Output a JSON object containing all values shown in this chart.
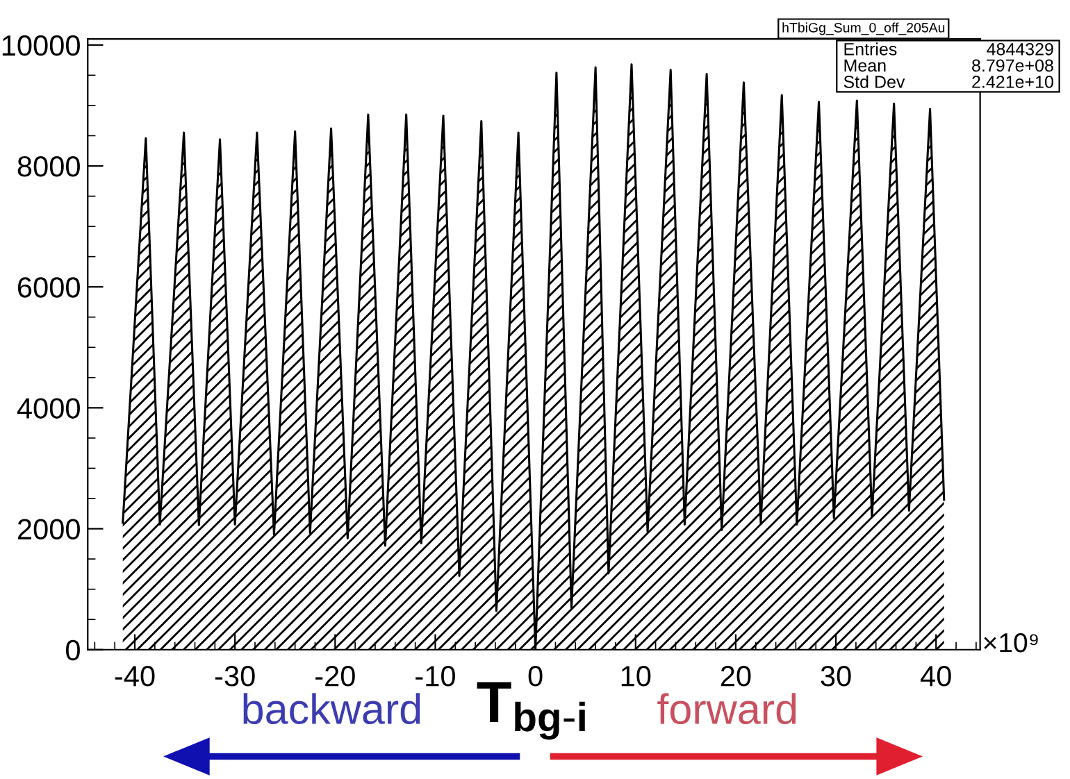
{
  "chart_data": {
    "type": "area",
    "x": [
      -41.2,
      -38.9,
      -37.5,
      -35.1,
      -33.6,
      -31.5,
      -30,
      -27.8,
      -26.1,
      -24,
      -22.5,
      -20.4,
      -18.75,
      -16.7,
      -15,
      -12.9,
      -11.4,
      -9.2,
      -7.6,
      -5.4,
      -3.9,
      -1.7,
      0,
      2.1,
      3.6,
      6,
      7.3,
      9.6,
      11.2,
      13.5,
      14.9,
      17.1,
      18.6,
      20.8,
      22.5,
      24.6,
      26.1,
      28.3,
      29.8,
      32.1,
      33.6,
      35.8,
      37.3,
      39.4,
      40.8
    ],
    "series": [
      {
        "color": "#000000",
        "values": [
          2100,
          8460,
          2070,
          8550,
          2060,
          8440,
          2070,
          8550,
          1900,
          8570,
          1930,
          8620,
          1840,
          8850,
          1720,
          8850,
          1760,
          8830,
          1220,
          8740,
          640,
          8550,
          0,
          9540,
          690,
          9630,
          1260,
          9680,
          1950,
          9590,
          2070,
          9520,
          1980,
          9380,
          2090,
          9170,
          2070,
          9060,
          2180,
          9080,
          2200,
          9030,
          2300,
          8940,
          2480
        ]
      }
    ],
    "xlim": [
      -44.7,
      44.4
    ],
    "xticks": [
      -40,
      -30,
      -20,
      -10,
      0,
      10,
      20,
      30,
      40
    ],
    "ylim": [
      0,
      10100
    ],
    "yticks": [
      0,
      2000,
      4000,
      6000,
      8000,
      10000
    ],
    "grid": false,
    "annotations": [
      "hTbiGg_Sum_0_off_205Au",
      "Entries",
      "4844329",
      "Mean",
      "8.797e+08",
      "Std Dev",
      "2.421e+10",
      "×10⁹",
      "T$_{bg-i}$",
      "backward",
      "forward"
    ]
  }
}
